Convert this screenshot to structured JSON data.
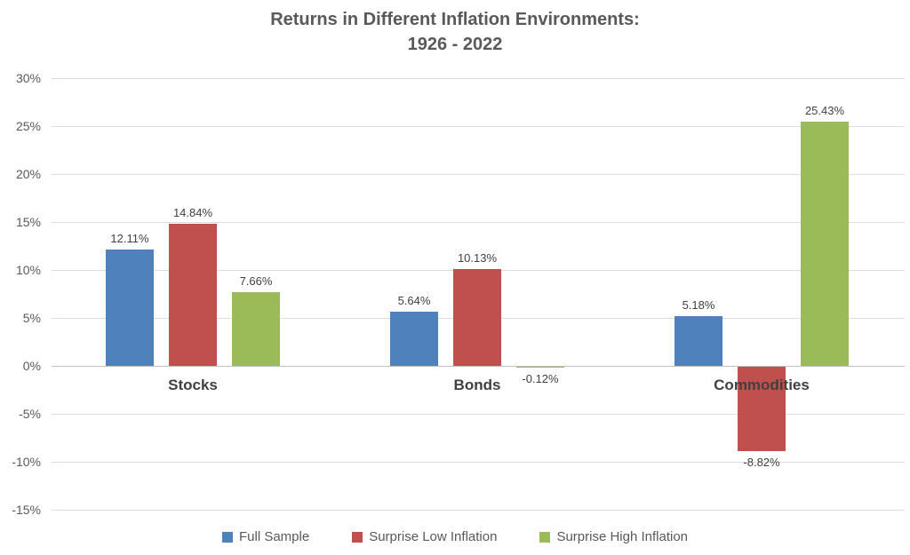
{
  "chart_data": {
    "type": "bar",
    "title": "Returns in Different Inflation Environments:",
    "subtitle": "1926 - 2022",
    "categories": [
      "Stocks",
      "Bonds",
      "Commodities"
    ],
    "series": [
      {
        "name": "Full Sample",
        "color": "#4F81BD",
        "values": [
          12.11,
          5.64,
          5.18
        ],
        "labels": [
          "12.11%",
          "5.64%",
          "5.18%"
        ]
      },
      {
        "name": "Surprise Low Inflation",
        "color": "#C0504D",
        "values": [
          14.84,
          10.13,
          -8.82
        ],
        "labels": [
          "14.84%",
          "10.13%",
          "-8.82%"
        ]
      },
      {
        "name": "Surprise High Inflation",
        "color": "#9BBB59",
        "values": [
          7.66,
          -0.12,
          25.43
        ],
        "labels": [
          "7.66%",
          "-0.12%",
          "25.43%"
        ]
      }
    ],
    "y_axis": {
      "tick_labels": [
        "30%",
        "25%",
        "20%",
        "15%",
        "10%",
        "5%",
        "0%",
        "-5%",
        "-10%",
        "-15%"
      ],
      "tick_values": [
        30,
        25,
        20,
        15,
        10,
        5,
        0,
        -5,
        -10,
        -15
      ],
      "min": -15,
      "max": 30,
      "step": 5
    },
    "grid": true,
    "legend_position": "bottom"
  }
}
